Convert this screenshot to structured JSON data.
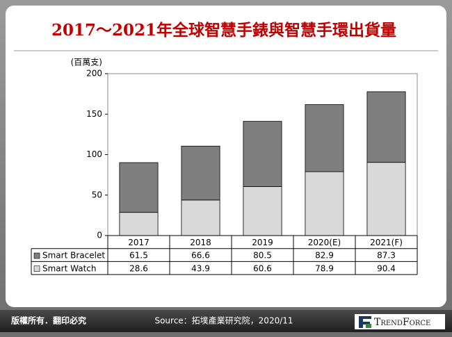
{
  "chart_data": {
    "type": "bar",
    "stacked": true,
    "title": "2017～2021年全球智慧手錶與智慧手環出貨量",
    "y_label": "(百萬支)",
    "categories": [
      "2017",
      "2018",
      "2019",
      "2020(E)",
      "2021(F)"
    ],
    "series": [
      {
        "name": "Smart Bracelet",
        "color": "#7f7f7f",
        "values": [
          61.5,
          66.6,
          80.5,
          82.9,
          87.3
        ]
      },
      {
        "name": "Smart Watch",
        "color": "#d9d9d9",
        "values": [
          28.6,
          43.9,
          60.6,
          78.9,
          90.4
        ]
      }
    ],
    "ylim": [
      0,
      200
    ],
    "yticks": [
      0,
      50,
      100,
      150,
      200
    ]
  },
  "footer": {
    "copyright": "版權所有．翻印必究",
    "source": "Source：拓墣產業研究院，2020/11",
    "logo": "TrendForce"
  }
}
